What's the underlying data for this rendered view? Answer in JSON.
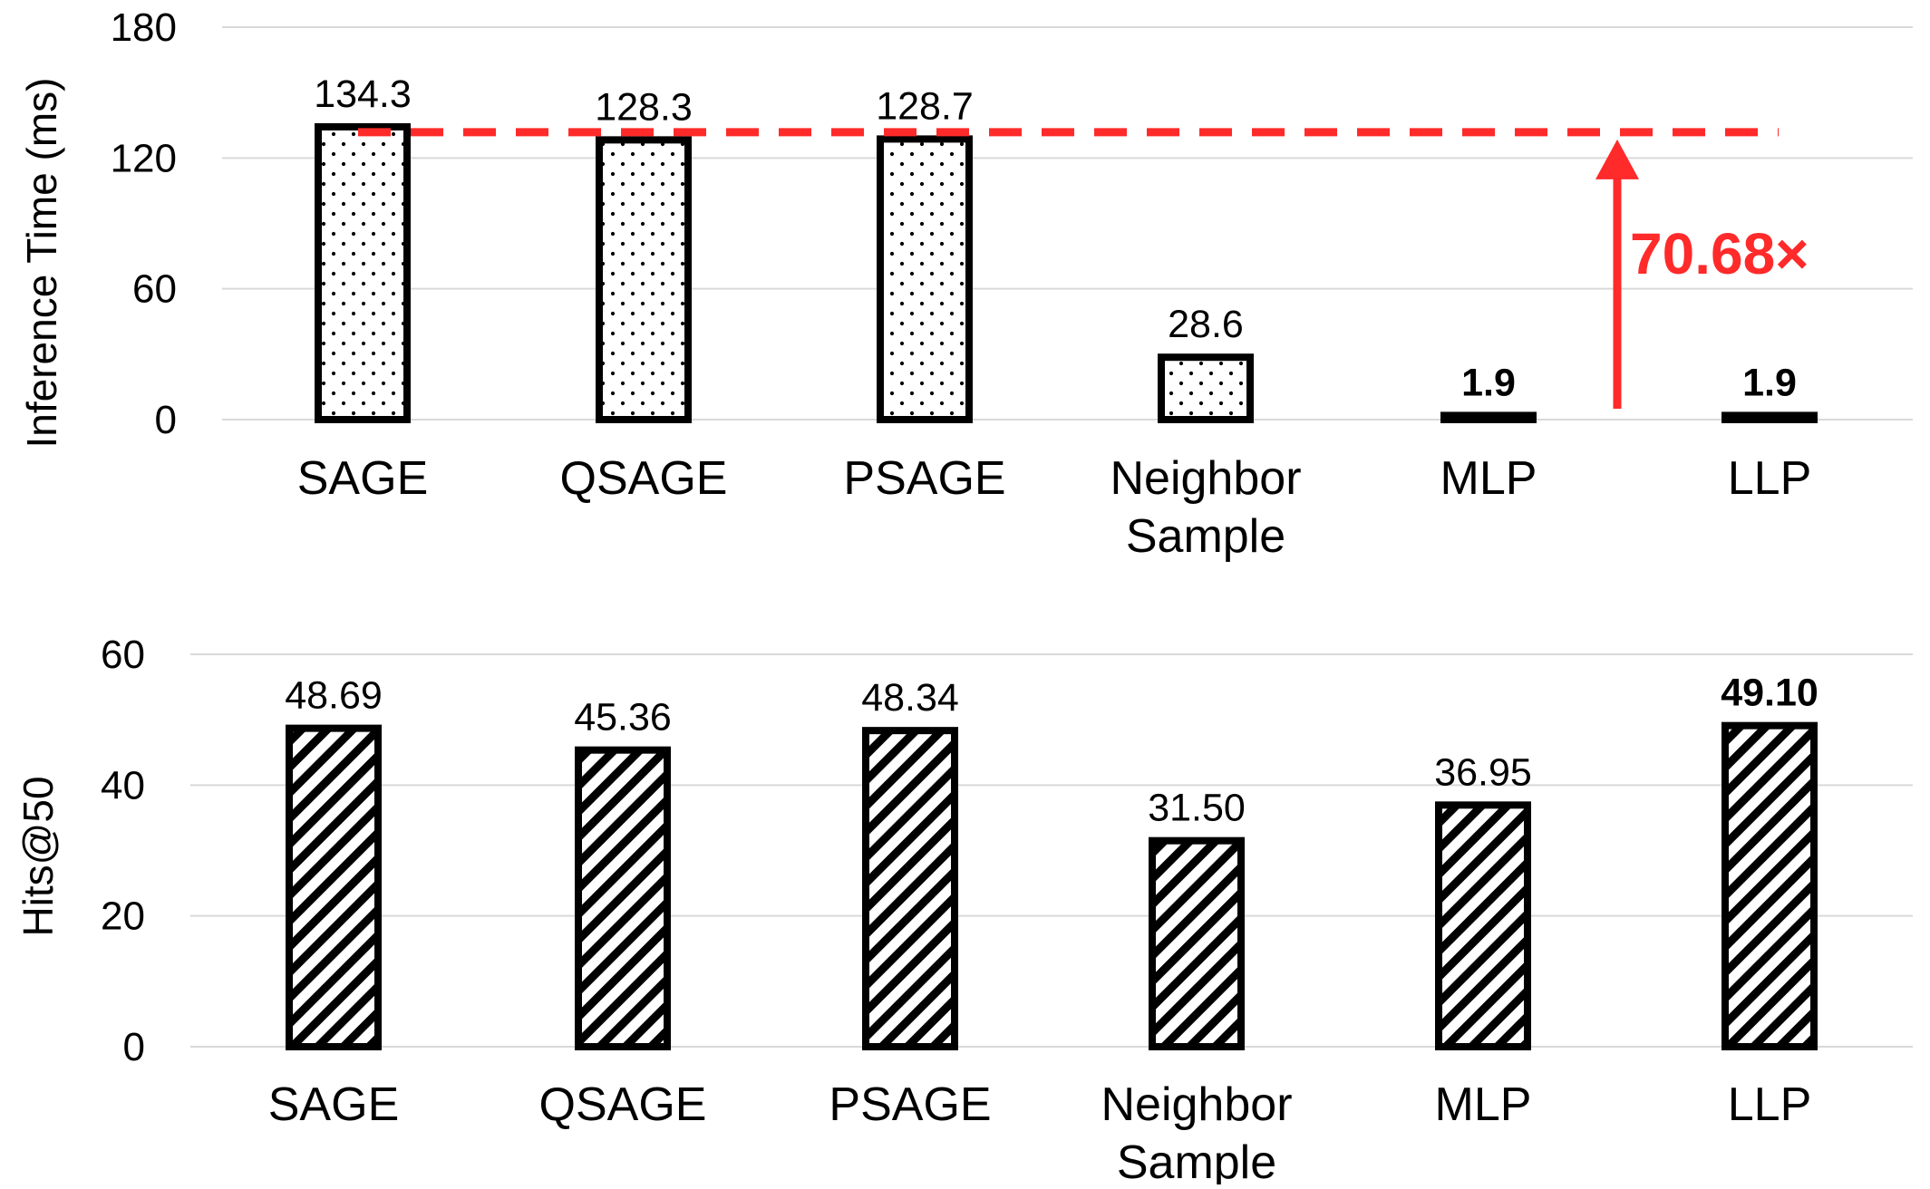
{
  "chart_data": [
    {
      "type": "bar",
      "ylabel": "Inference Time (ms)",
      "ylim": [
        0,
        180
      ],
      "yticks": [
        "0",
        "60",
        "120",
        "180"
      ],
      "grid": true,
      "pattern": "dots",
      "categories": [
        "SAGE",
        "QSAGE",
        "PSAGE",
        "Neighbor Sample",
        "MLP",
        "LLP"
      ],
      "category_lines": [
        [
          "SAGE"
        ],
        [
          "QSAGE"
        ],
        [
          "PSAGE"
        ],
        [
          "Neighbor",
          "Sample"
        ],
        [
          "MLP"
        ],
        [
          "LLP"
        ]
      ],
      "values": [
        134.3,
        128.3,
        128.7,
        28.6,
        1.9,
        1.9
      ],
      "value_labels": [
        "134.3",
        "128.3",
        "128.7",
        "28.6",
        "1.9",
        "1.9"
      ],
      "bold_labels": [
        false,
        false,
        false,
        false,
        true,
        true
      ],
      "annotation": {
        "text": "70.68×",
        "color": "#ff2a2a",
        "reference_value": 134.3,
        "style": "dashed line with upward arrow"
      }
    },
    {
      "type": "bar",
      "ylabel": "Hits@50",
      "ylim": [
        0,
        60
      ],
      "yticks": [
        "0",
        "20",
        "40",
        "60"
      ],
      "grid": true,
      "pattern": "diagonal-stripes",
      "categories": [
        "SAGE",
        "QSAGE",
        "PSAGE",
        "Neighbor Sample",
        "MLP",
        "LLP"
      ],
      "category_lines": [
        [
          "SAGE"
        ],
        [
          "QSAGE"
        ],
        [
          "PSAGE"
        ],
        [
          "Neighbor",
          "Sample"
        ],
        [
          "MLP"
        ],
        [
          "LLP"
        ]
      ],
      "values": [
        48.69,
        45.36,
        48.34,
        31.5,
        36.95,
        49.1
      ],
      "value_labels": [
        "48.69",
        "45.36",
        "48.34",
        "31.50",
        "36.95",
        "49.10"
      ],
      "bold_labels": [
        false,
        false,
        false,
        false,
        false,
        true
      ]
    }
  ]
}
